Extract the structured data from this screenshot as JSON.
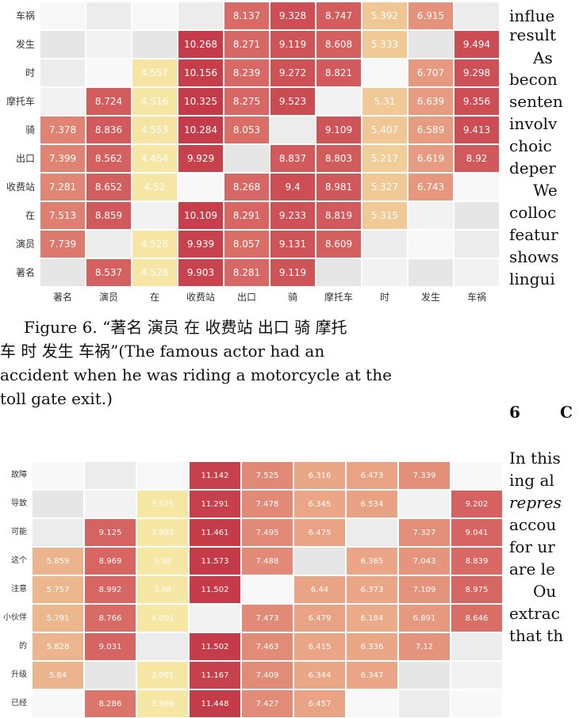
{
  "figure6": {
    "caption_line1": "Figure 6. “著名 演员 在 收费站 出口 骑 摩托",
    "caption_line2": "车 时 发生 车祸”(The famous actor had an",
    "caption_line3": "accident when he was riding a motorcycle at the",
    "caption_line4": "toll gate exit.)"
  },
  "chart_data": [
    {
      "type": "heatmap",
      "x": [
        "著名",
        "演员",
        "在",
        "收费站",
        "出口",
        "骑",
        "摩托车",
        "时",
        "发生",
        "车祸"
      ],
      "y": [
        "车祸",
        "发生",
        "时",
        "摩托车",
        "骑",
        "出口",
        "收费站",
        "在",
        "演员",
        "著名"
      ],
      "values": [
        [
          null,
          null,
          null,
          null,
          "8.137",
          "9.328",
          "8.747",
          "5.392",
          "6.915",
          null
        ],
        [
          null,
          null,
          null,
          "10.268",
          "8.271",
          "9.119",
          "8.608",
          "5.333",
          null,
          "9.494"
        ],
        [
          null,
          null,
          "4.557",
          "10.156",
          "8.239",
          "9.272",
          "8.821",
          null,
          "6.707",
          "9.298"
        ],
        [
          null,
          "8.724",
          "4.516",
          "10.325",
          "8.275",
          "9.523",
          null,
          "5.31",
          "6.639",
          "9.356"
        ],
        [
          "7.378",
          "8.836",
          "4.553",
          "10.284",
          "8.053",
          null,
          "9.109",
          "5.407",
          "6.589",
          "9.413"
        ],
        [
          "7.399",
          "8.562",
          "4.454",
          "9.929",
          null,
          "8.837",
          "8.803",
          "5.217",
          "6.619",
          "8.92"
        ],
        [
          "7.281",
          "8.652",
          "4.52",
          null,
          "8.268",
          "9.4",
          "8.981",
          "5.327",
          "6.743",
          null
        ],
        [
          "7.513",
          "8.859",
          null,
          "10.109",
          "8.291",
          "9.233",
          "8.819",
          "5.315",
          null,
          null
        ],
        [
          "7.739",
          null,
          "4.528",
          "9.939",
          "8.057",
          "9.131",
          "8.609",
          null,
          null,
          null
        ],
        [
          null,
          "8.537",
          "4.528",
          "9.903",
          "8.281",
          "9.119",
          null,
          null,
          null,
          null
        ]
      ]
    },
    {
      "type": "heatmap",
      "y": [
        "故障",
        "导致",
        "可能",
        "这个",
        "注意",
        "小伙伴",
        "的",
        "升级",
        "已经"
      ],
      "values": [
        [
          null,
          null,
          null,
          "11.142",
          "7.525",
          "6.316",
          "6.473",
          "7.339",
          null
        ],
        [
          null,
          null,
          "3.975",
          "11.291",
          "7.478",
          "6.345",
          "6.534",
          null,
          "9.202"
        ],
        [
          null,
          "9.125",
          "3.992",
          "11.461",
          "7.495",
          "6.475",
          null,
          "7.327",
          "9.041"
        ],
        [
          "5.859",
          "8.969",
          "3.98",
          "11.573",
          "7.488",
          null,
          "6.365",
          "7.043",
          "8.839"
        ],
        [
          "5.757",
          "8.992",
          "3.98",
          "11.502",
          null,
          "6.44",
          "6.373",
          "7.109",
          "8.975"
        ],
        [
          "5.791",
          "8.766",
          "4.001",
          null,
          "7.473",
          "6.479",
          "6.184",
          "6.891",
          "8.646"
        ],
        [
          "5.828",
          "9.031",
          null,
          "11.502",
          "7.463",
          "6.415",
          "6.336",
          "7.12",
          null
        ],
        [
          "5.84",
          null,
          "3.981",
          "11.167",
          "7.409",
          "6.344",
          "6.347",
          null,
          null
        ],
        [
          null,
          "8.286",
          "3.986",
          "11.448",
          "7.427",
          "6.457",
          null,
          null,
          null
        ]
      ]
    }
  ],
  "right_column": {
    "l1": "influe",
    "l2": "result",
    "l3": "As",
    "l4": "becon",
    "l5": "senten",
    "l6": "involv",
    "l7": "choic",
    "l8": "deper",
    "l9": "We",
    "l10": "colloc",
    "l11": "featur",
    "l12": "shows",
    "l13": "lingui",
    "section_num": "6",
    "section_fragment": "C",
    "s1": "In this",
    "s2": "ing al",
    "s3": "repres",
    "s4": "accou",
    "s5": "for ur",
    "s6": "are le",
    "s7": "Ou",
    "s8": "extrac",
    "s9": "that th"
  }
}
